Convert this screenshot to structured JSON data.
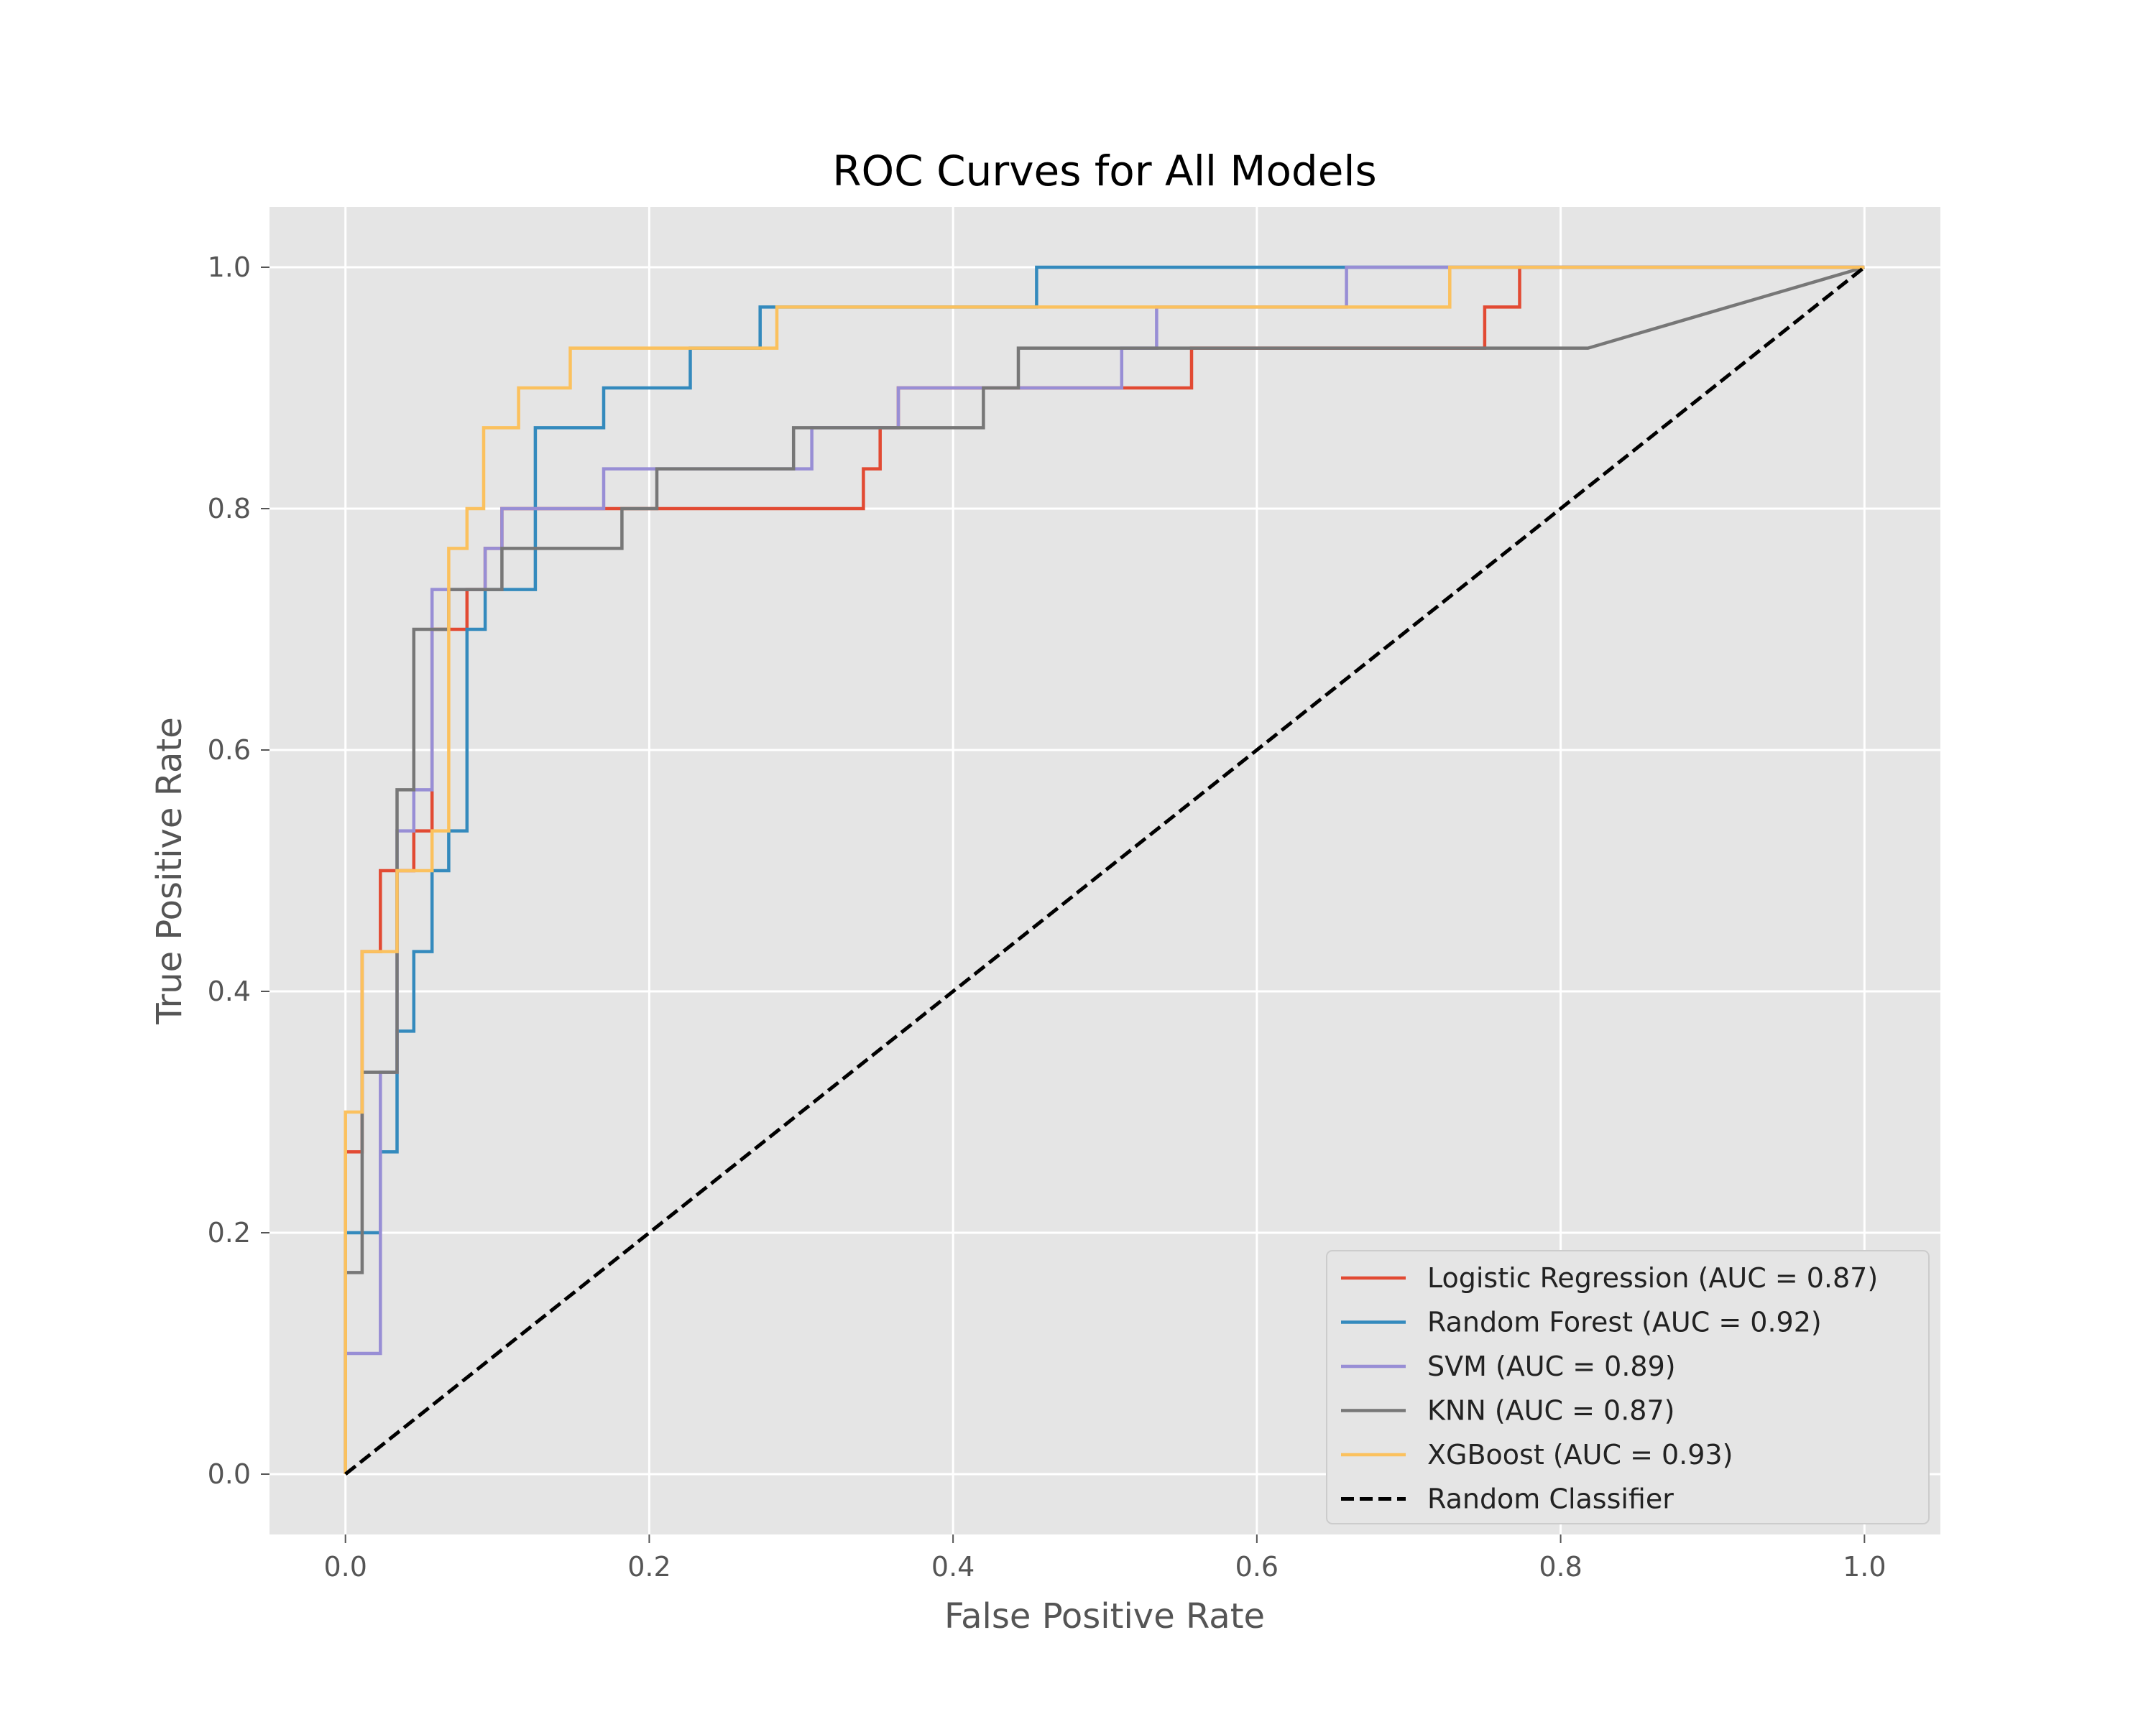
{
  "chart_data": {
    "type": "line",
    "title": "ROC Curves for All Models",
    "xlabel": "False Positive Rate",
    "ylabel": "True Positive Rate",
    "xlim": [
      -0.05,
      1.05
    ],
    "ylim": [
      -0.05,
      1.05
    ],
    "xticks": [
      0.0,
      0.2,
      0.4,
      0.6,
      0.8,
      1.0
    ],
    "yticks": [
      0.0,
      0.2,
      0.4,
      0.6,
      0.8,
      1.0
    ],
    "xtick_labels": [
      "0.0",
      "0.2",
      "0.4",
      "0.6",
      "0.8",
      "1.0"
    ],
    "ytick_labels": [
      "0.0",
      "0.2",
      "0.4",
      "0.6",
      "0.8",
      "1.0"
    ],
    "grid": true,
    "legend_position": "lower-right",
    "background": "#e5e5e5",
    "series": [
      {
        "name": "Logistic Regression (AUC = 0.87)",
        "color": "#e24a33",
        "style": "solid",
        "points": [
          [
            0,
            0
          ],
          [
            0,
            0.267
          ],
          [
            0.011,
            0.267
          ],
          [
            0.011,
            0.433
          ],
          [
            0.023,
            0.433
          ],
          [
            0.023,
            0.5
          ],
          [
            0.045,
            0.5
          ],
          [
            0.045,
            0.533
          ],
          [
            0.057,
            0.533
          ],
          [
            0.057,
            0.7
          ],
          [
            0.08,
            0.7
          ],
          [
            0.08,
            0.733
          ],
          [
            0.092,
            0.733
          ],
          [
            0.092,
            0.767
          ],
          [
            0.103,
            0.767
          ],
          [
            0.103,
            0.8
          ],
          [
            0.341,
            0.8
          ],
          [
            0.341,
            0.833
          ],
          [
            0.352,
            0.833
          ],
          [
            0.352,
            0.867
          ],
          [
            0.364,
            0.867
          ],
          [
            0.364,
            0.9
          ],
          [
            0.557,
            0.9
          ],
          [
            0.557,
            0.933
          ],
          [
            0.75,
            0.933
          ],
          [
            0.75,
            0.967
          ],
          [
            0.773,
            0.967
          ],
          [
            0.773,
            1.0
          ],
          [
            1.0,
            1.0
          ]
        ]
      },
      {
        "name": "Random Forest (AUC = 0.92)",
        "color": "#348abd",
        "style": "solid",
        "points": [
          [
            0,
            0
          ],
          [
            0,
            0.2
          ],
          [
            0.023,
            0.2
          ],
          [
            0.023,
            0.267
          ],
          [
            0.034,
            0.267
          ],
          [
            0.034,
            0.367
          ],
          [
            0.045,
            0.367
          ],
          [
            0.045,
            0.433
          ],
          [
            0.057,
            0.433
          ],
          [
            0.057,
            0.5
          ],
          [
            0.068,
            0.5
          ],
          [
            0.068,
            0.533
          ],
          [
            0.08,
            0.533
          ],
          [
            0.08,
            0.7
          ],
          [
            0.092,
            0.7
          ],
          [
            0.092,
            0.733
          ],
          [
            0.125,
            0.733
          ],
          [
            0.125,
            0.867
          ],
          [
            0.17,
            0.867
          ],
          [
            0.17,
            0.9
          ],
          [
            0.227,
            0.9
          ],
          [
            0.227,
            0.933
          ],
          [
            0.273,
            0.933
          ],
          [
            0.273,
            0.967
          ],
          [
            0.455,
            0.967
          ],
          [
            0.455,
            1.0
          ],
          [
            1.0,
            1.0
          ]
        ]
      },
      {
        "name": "SVM (AUC = 0.89)",
        "color": "#988ed5",
        "style": "solid",
        "points": [
          [
            0,
            0
          ],
          [
            0,
            0.1
          ],
          [
            0.023,
            0.1
          ],
          [
            0.023,
            0.333
          ],
          [
            0.034,
            0.333
          ],
          [
            0.034,
            0.533
          ],
          [
            0.045,
            0.533
          ],
          [
            0.045,
            0.567
          ],
          [
            0.057,
            0.567
          ],
          [
            0.057,
            0.733
          ],
          [
            0.092,
            0.733
          ],
          [
            0.092,
            0.767
          ],
          [
            0.103,
            0.767
          ],
          [
            0.103,
            0.8
          ],
          [
            0.17,
            0.8
          ],
          [
            0.17,
            0.833
          ],
          [
            0.295,
            0.833
          ],
          [
            0.295,
            0.833
          ],
          [
            0.307,
            0.833
          ],
          [
            0.307,
            0.867
          ],
          [
            0.364,
            0.867
          ],
          [
            0.364,
            0.9
          ],
          [
            0.511,
            0.9
          ],
          [
            0.511,
            0.933
          ],
          [
            0.534,
            0.933
          ],
          [
            0.534,
            0.967
          ],
          [
            0.659,
            0.967
          ],
          [
            0.659,
            1.0
          ],
          [
            1.0,
            1.0
          ]
        ]
      },
      {
        "name": "KNN (AUC = 0.87)",
        "color": "#777777",
        "style": "solid",
        "points": [
          [
            0,
            0
          ],
          [
            0,
            0.167
          ],
          [
            0.011,
            0.167
          ],
          [
            0.011,
            0.333
          ],
          [
            0.034,
            0.333
          ],
          [
            0.034,
            0.567
          ],
          [
            0.045,
            0.567
          ],
          [
            0.045,
            0.7
          ],
          [
            0.068,
            0.7
          ],
          [
            0.068,
            0.733
          ],
          [
            0.103,
            0.733
          ],
          [
            0.103,
            0.767
          ],
          [
            0.182,
            0.767
          ],
          [
            0.182,
            0.8
          ],
          [
            0.205,
            0.8
          ],
          [
            0.205,
            0.833
          ],
          [
            0.295,
            0.833
          ],
          [
            0.295,
            0.867
          ],
          [
            0.42,
            0.867
          ],
          [
            0.42,
            0.9
          ],
          [
            0.443,
            0.9
          ],
          [
            0.443,
            0.933
          ],
          [
            0.818,
            0.933
          ],
          [
            1.0,
            1.0
          ]
        ]
      },
      {
        "name": "XGBoost (AUC = 0.93)",
        "color": "#fbc15e",
        "style": "solid",
        "points": [
          [
            0,
            0
          ],
          [
            0,
            0.3
          ],
          [
            0.011,
            0.3
          ],
          [
            0.011,
            0.433
          ],
          [
            0.034,
            0.433
          ],
          [
            0.034,
            0.5
          ],
          [
            0.057,
            0.5
          ],
          [
            0.057,
            0.533
          ],
          [
            0.068,
            0.533
          ],
          [
            0.068,
            0.767
          ],
          [
            0.08,
            0.767
          ],
          [
            0.08,
            0.8
          ],
          [
            0.091,
            0.8
          ],
          [
            0.091,
            0.867
          ],
          [
            0.114,
            0.867
          ],
          [
            0.114,
            0.9
          ],
          [
            0.148,
            0.9
          ],
          [
            0.148,
            0.933
          ],
          [
            0.284,
            0.933
          ],
          [
            0.284,
            0.967
          ],
          [
            0.727,
            0.967
          ],
          [
            0.727,
            1.0
          ],
          [
            1.0,
            1.0
          ]
        ]
      },
      {
        "name": "Random Classifier",
        "color": "#000000",
        "style": "dashed",
        "points": [
          [
            0,
            0
          ],
          [
            1,
            1
          ]
        ]
      }
    ]
  }
}
